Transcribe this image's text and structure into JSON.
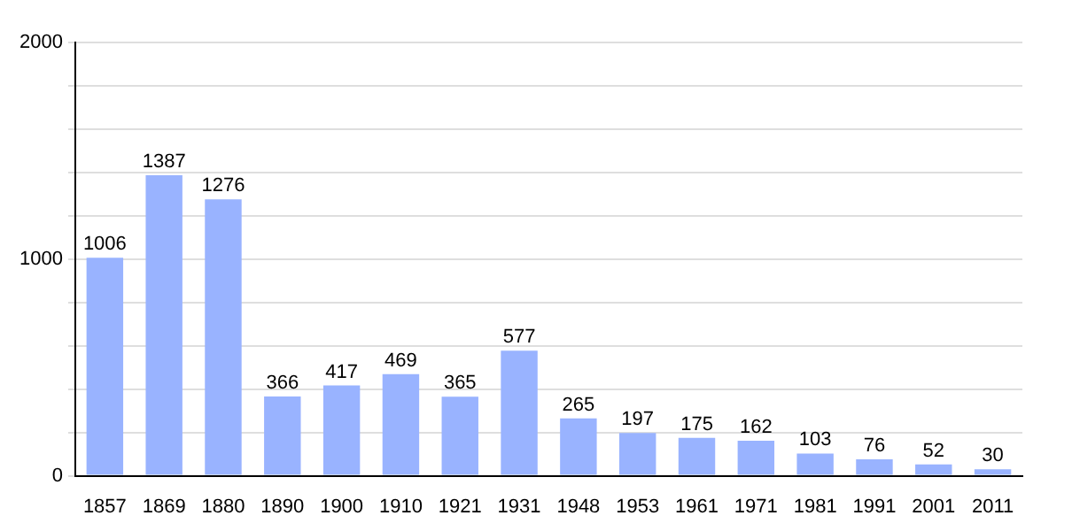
{
  "chart_data": {
    "type": "bar",
    "categories": [
      "1857",
      "1869",
      "1880",
      "1890",
      "1900",
      "1910",
      "1921",
      "1931",
      "1948",
      "1953",
      "1961",
      "1971",
      "1981",
      "1991",
      "2001",
      "2011"
    ],
    "values": [
      1006,
      1387,
      1276,
      366,
      417,
      469,
      365,
      577,
      265,
      197,
      175,
      162,
      103,
      76,
      52,
      30
    ],
    "color": "#99b3ff",
    "ylim": [
      0,
      2000
    ],
    "yticks": [
      0,
      {
        "value": 200,
        "label": null
      },
      {
        "value": 400,
        "label": null
      },
      {
        "value": 600,
        "label": null
      },
      {
        "value": 800,
        "label": null
      },
      1000,
      {
        "value": 1200,
        "label": null
      },
      {
        "value": 1400,
        "label": null
      },
      {
        "value": 1600,
        "label": null
      },
      {
        "value": 1800,
        "label": null
      },
      2000
    ],
    "grid": "y",
    "data_labels": true
  }
}
